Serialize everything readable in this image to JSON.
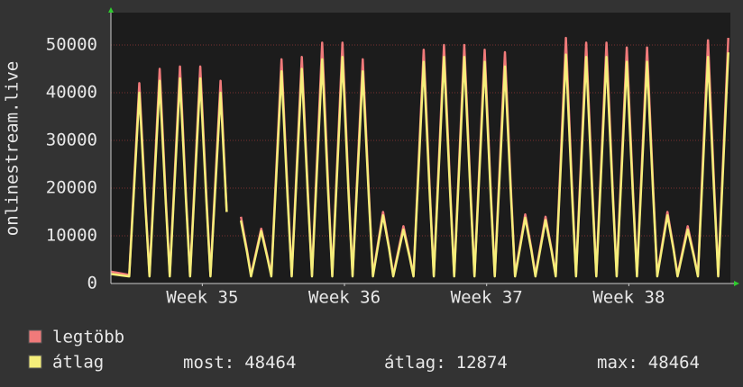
{
  "chart_data": {
    "type": "line",
    "y_label": "onlinestream.live",
    "xlim": [
      0,
      30.5
    ],
    "xticks": [
      {
        "value": 4.5,
        "label": "Week 35"
      },
      {
        "value": 11.5,
        "label": "Week 36"
      },
      {
        "value": 18.5,
        "label": "Week 37"
      },
      {
        "value": 25.5,
        "label": "Week 38"
      }
    ],
    "ylim": [
      0,
      56800
    ],
    "yticks": [
      0,
      10000,
      20000,
      30000,
      40000,
      50000
    ],
    "grid": true,
    "x": [
      0,
      0.9,
      1.4,
      1.7,
      1.9,
      2.4,
      2.7,
      2.9,
      3.4,
      3.7,
      3.9,
      4.4,
      4.7,
      4.9,
      5.4,
      5.7,
      5.9,
      6.4,
      6.7,
      6.9,
      7.4,
      7.7,
      7.9,
      8.4,
      8.7,
      8.9,
      9.4,
      9.7,
      9.9,
      10.4,
      10.7,
      10.9,
      11.4,
      11.7,
      11.9,
      12.4,
      12.7,
      12.9,
      13.4,
      13.7,
      13.9,
      14.4,
      14.7,
      14.9,
      15.4,
      15.7,
      15.9,
      16.4,
      16.7,
      16.9,
      17.4,
      17.7,
      17.9,
      18.4,
      18.7,
      18.9,
      19.4,
      19.7,
      19.9,
      20.4,
      20.7,
      20.9,
      21.4,
      21.7,
      21.9,
      22.4,
      22.7,
      22.9,
      23.4,
      23.7,
      23.9,
      24.4,
      24.7,
      24.9,
      25.4,
      25.7,
      25.9,
      26.4,
      26.7,
      26.9,
      27.4,
      27.7,
      27.9,
      28.4,
      28.7,
      28.9,
      29.4,
      29.7,
      29.9,
      30.4
    ],
    "series": [
      {
        "name": "legtöbb",
        "color": "#f07a7a",
        "values": [
          2500,
          1800,
          42000,
          16800,
          1800,
          45000,
          18000,
          1800,
          45500,
          18200,
          1800,
          45500,
          18200,
          1800,
          42500,
          15000,
          null,
          14000,
          7000,
          1800,
          11500,
          5800,
          1800,
          47000,
          18800,
          1800,
          47500,
          19000,
          1800,
          50500,
          20200,
          1800,
          50500,
          20200,
          1800,
          47000,
          18800,
          1800,
          15000,
          7500,
          1800,
          12000,
          6000,
          1800,
          49000,
          19600,
          1800,
          50000,
          20000,
          1800,
          50000,
          20000,
          1800,
          49000,
          19600,
          1800,
          48500,
          19400,
          1800,
          14500,
          7300,
          1800,
          14000,
          7000,
          1800,
          51500,
          20600,
          1800,
          50500,
          20200,
          1800,
          50500,
          20200,
          1800,
          49500,
          19800,
          1800,
          49500,
          19800,
          1800,
          15000,
          7500,
          1800,
          12000,
          6000,
          1800,
          51000,
          20400,
          1800,
          51500
        ]
      },
      {
        "name": "átlag",
        "color": "#f5ee7a",
        "values": [
          2000,
          1500,
          40000,
          16000,
          1500,
          42500,
          17000,
          1500,
          43000,
          17200,
          1500,
          43000,
          17200,
          1500,
          40000,
          15000,
          null,
          13200,
          6600,
          1500,
          11000,
          5500,
          1500,
          44500,
          17800,
          1500,
          45000,
          18000,
          1500,
          47000,
          18800,
          1500,
          47500,
          19000,
          1500,
          44500,
          17800,
          1500,
          14300,
          7200,
          1500,
          11300,
          5700,
          1500,
          46500,
          18600,
          1500,
          47500,
          19000,
          1500,
          47500,
          19000,
          1500,
          46500,
          18600,
          1500,
          45500,
          18200,
          1500,
          13800,
          6900,
          1500,
          13300,
          6700,
          1500,
          48000,
          19200,
          1500,
          47500,
          19000,
          1500,
          47500,
          19000,
          1500,
          46500,
          18600,
          1500,
          46500,
          18600,
          1500,
          14300,
          7200,
          1500,
          11300,
          5700,
          1500,
          47500,
          19000,
          1500,
          48464
        ]
      }
    ],
    "stats": [
      {
        "label": "most:",
        "value": 48464
      },
      {
        "label": "átlag:",
        "value": 12874
      },
      {
        "label": "max:",
        "value": 48464
      }
    ]
  }
}
